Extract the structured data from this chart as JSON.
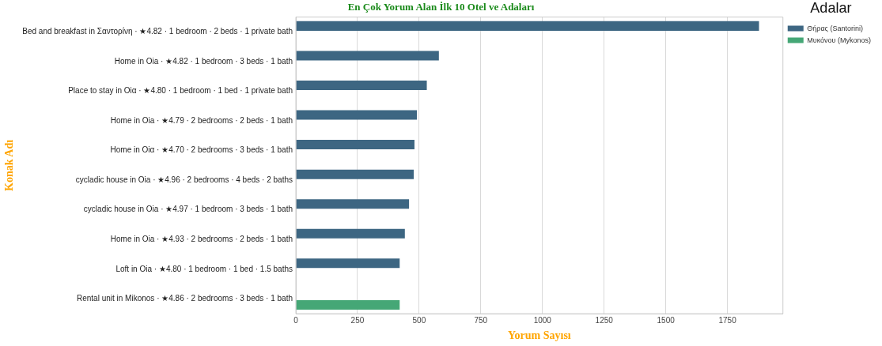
{
  "chart_data": {
    "type": "bar",
    "orientation": "horizontal",
    "title": "En Çok Yorum Alan İlk 10 Otel ve Adaları",
    "xlabel": "Yorum Sayısı",
    "ylabel": "Konak Adı",
    "legend_title": "Adalar",
    "categories": [
      "Bed and breakfast in Σαντορίνη · ★4.82 · 1 bedroom · 2 beds · 1 private bath",
      "Home in Oia · ★4.82 · 1 bedroom · 3 beds · 1 bath",
      "Place to stay in Oiα · ★4.80 · 1 bedroom · 1 bed · 1 private bath",
      "Home in Oia · ★4.79 · 2 bedrooms · 2 beds · 1 bath",
      "Home in Oiα · ★4.70 · 2 bedrooms · 3 beds · 1 bath",
      "cycladic house in Oia · ★4.96 · 2 bedrooms · 4 beds · 2 baths",
      "cycladic house in Oia · ★4.97 · 1 bedroom · 3 beds · 1 bath",
      "Home in Oia · ★4.93 · 2 bedrooms · 2 beds · 1 bath",
      "Loft in Oia · ★4.80 · 1 bedroom · 1 bed · 1.5 baths",
      "Rental unit in Mikonos · ★4.86 · 2 bedrooms · 3 beds · 1 bath"
    ],
    "series": [
      {
        "name": "Θήρας (Santorini)",
        "color": "#3d6682",
        "values": [
          1878,
          580,
          531,
          491,
          481,
          478,
          459,
          442,
          421,
          null
        ]
      },
      {
        "name": "Μυκόνου (Mykonos)",
        "color": "#45a776",
        "values": [
          null,
          null,
          null,
          null,
          null,
          null,
          null,
          null,
          null,
          421
        ]
      }
    ],
    "xlim": [
      0,
      1975
    ],
    "xticks": [
      0,
      250,
      500,
      750,
      1000,
      1250,
      1500,
      1750
    ],
    "grid": "x",
    "legend": "top right"
  }
}
